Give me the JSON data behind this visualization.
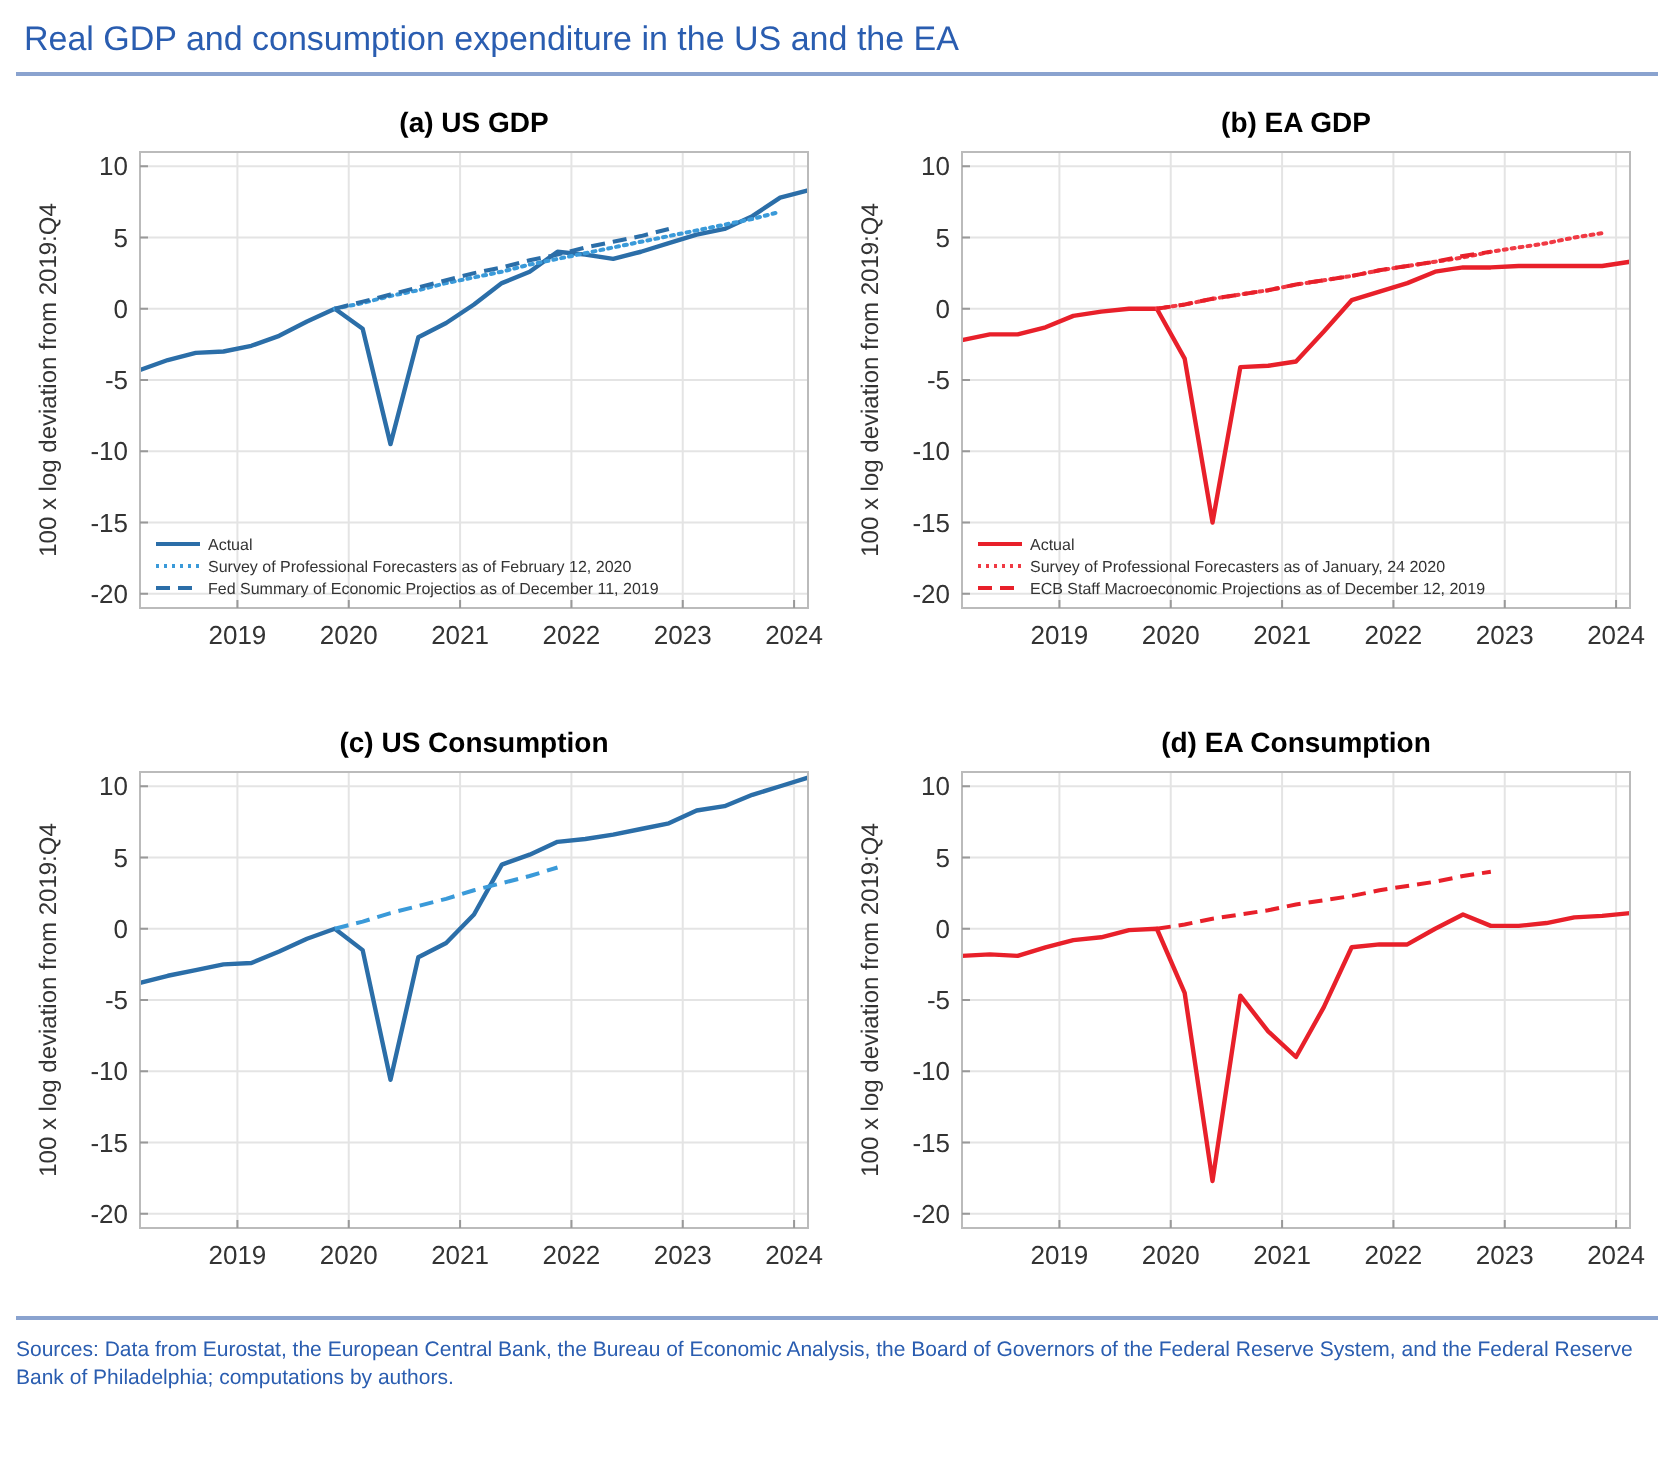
{
  "chart_data": [
    {
      "type": "other",
      "title": "Real GDP and consumption expenditure in the US and the EA",
      "annotations": [
        "Sources: Data from Eurostat, the European Central Bank, the Bureau of Economic Analysis, the Board of Governors of the Federal Reserve System, and the Federal Reserve Bank of Philadelphia; computations by authors."
      ]
    },
    {
      "type": "line",
      "title": "(a) US GDP",
      "ylabel": "100 x log deviation from 2019:Q4",
      "x": [
        2018.125,
        2018.375,
        2018.625,
        2018.875,
        2019.125,
        2019.375,
        2019.625,
        2019.875,
        2020.125,
        2020.375,
        2020.625,
        2020.875,
        2021.125,
        2021.375,
        2021.625,
        2021.875,
        2022.125,
        2022.375,
        2022.625,
        2022.875,
        2023.125,
        2023.375,
        2023.625,
        2023.875,
        2024.125
      ],
      "xlim": [
        2018.125,
        2024.125
      ],
      "xticks": [
        2019,
        2020,
        2021,
        2022,
        2023,
        2024
      ],
      "ylim": [
        -21,
        11
      ],
      "yticks": [
        -20,
        -15,
        -10,
        -5,
        0,
        5,
        10
      ],
      "grid": true,
      "legend": "bottom left",
      "series": [
        {
          "name": "Actual",
          "color": "#2b6ea8",
          "line_style": "solid",
          "values": [
            -4.3,
            -3.6,
            -3.1,
            -3.0,
            -2.6,
            -1.9,
            -0.9,
            0,
            -1.4,
            -9.5,
            -2.0,
            -1.0,
            0.3,
            1.8,
            2.6,
            4.0,
            3.8,
            3.5,
            4.0,
            4.6,
            5.2,
            5.6,
            6.5,
            7.8,
            8.3
          ]
        },
        {
          "name": "Survey of Professional Forecasters as of February 12, 2020",
          "color": "#3a9ad9",
          "line_style": "dotted",
          "x": [
            2019.875,
            2020.125,
            2020.375,
            2020.625,
            2020.875,
            2021.125,
            2021.375,
            2021.625,
            2021.875,
            2022.125,
            2022.375,
            2022.625,
            2022.875,
            2023.125,
            2023.375,
            2023.625,
            2023.875
          ],
          "values": [
            0,
            0.4,
            0.9,
            1.3,
            1.8,
            2.2,
            2.6,
            3.1,
            3.5,
            3.9,
            4.3,
            4.7,
            5.1,
            5.5,
            5.9,
            6.3,
            6.8
          ]
        },
        {
          "name": "Fed Summary of Economic Projectios as of December 11, 2019",
          "color": "#2b6ea8",
          "line_style": "dashed",
          "x": [
            2019.875,
            2020.125,
            2020.375,
            2020.625,
            2020.875,
            2021.125,
            2021.375,
            2021.625,
            2021.875,
            2022.125,
            2022.375,
            2022.625,
            2022.875
          ],
          "values": [
            0,
            0.5,
            1.0,
            1.5,
            2.0,
            2.5,
            2.9,
            3.4,
            3.8,
            4.3,
            4.7,
            5.1,
            5.6
          ]
        }
      ]
    },
    {
      "type": "line",
      "title": "(b) EA GDP",
      "ylabel": "100 x log deviation from 2019:Q4",
      "x": [
        2018.125,
        2018.375,
        2018.625,
        2018.875,
        2019.125,
        2019.375,
        2019.625,
        2019.875,
        2020.125,
        2020.375,
        2020.625,
        2020.875,
        2021.125,
        2021.375,
        2021.625,
        2021.875,
        2022.125,
        2022.375,
        2022.625,
        2022.875,
        2023.125,
        2023.375,
        2023.625,
        2023.875,
        2024.125
      ],
      "xlim": [
        2018.125,
        2024.125
      ],
      "xticks": [
        2019,
        2020,
        2021,
        2022,
        2023,
        2024
      ],
      "ylim": [
        -21,
        11
      ],
      "yticks": [
        -20,
        -15,
        -10,
        -5,
        0,
        5,
        10
      ],
      "grid": true,
      "legend": "bottom left",
      "series": [
        {
          "name": "Actual",
          "color": "#e8202a",
          "line_style": "solid",
          "values": [
            -2.2,
            -1.8,
            -1.8,
            -1.3,
            -0.5,
            -0.2,
            0,
            0,
            -3.5,
            -15.0,
            -4.1,
            -4.0,
            -3.7,
            -1.6,
            0.6,
            1.2,
            1.8,
            2.6,
            2.9,
            2.9,
            3.0,
            3.0,
            3.0,
            3.0,
            3.3
          ]
        },
        {
          "name": "Survey of Professional Forecasters as of January, 24 2020",
          "color": "#f03a44",
          "line_style": "dotted",
          "x": [
            2019.875,
            2020.125,
            2020.375,
            2020.625,
            2020.875,
            2021.125,
            2021.375,
            2021.625,
            2021.875,
            2022.125,
            2022.375,
            2022.625,
            2022.875,
            2023.125,
            2023.375,
            2023.625,
            2023.875
          ],
          "values": [
            0,
            0.3,
            0.7,
            1.0,
            1.3,
            1.7,
            2.0,
            2.3,
            2.7,
            3.0,
            3.3,
            3.6,
            4.0,
            4.3,
            4.6,
            5.0,
            5.3
          ]
        },
        {
          "name": "ECB Staff Macroeconomic Projections as of December 12, 2019",
          "color": "#e8202a",
          "line_style": "dashed",
          "x": [
            2019.875,
            2020.125,
            2020.375,
            2020.625,
            2020.875,
            2021.125,
            2021.375,
            2021.625,
            2021.875,
            2022.125,
            2022.375,
            2022.625,
            2022.875
          ],
          "values": [
            0,
            0.3,
            0.7,
            1.0,
            1.3,
            1.7,
            2.0,
            2.3,
            2.7,
            3.0,
            3.3,
            3.7,
            4.0
          ]
        }
      ]
    },
    {
      "type": "line",
      "title": "(c) US Consumption",
      "ylabel": "100 x log deviation from 2019:Q4",
      "x": [
        2018.125,
        2018.375,
        2018.625,
        2018.875,
        2019.125,
        2019.375,
        2019.625,
        2019.875,
        2020.125,
        2020.375,
        2020.625,
        2020.875,
        2021.125,
        2021.375,
        2021.625,
        2021.875,
        2022.125,
        2022.375,
        2022.625,
        2022.875,
        2023.125,
        2023.375,
        2023.625,
        2023.875,
        2024.125
      ],
      "xlim": [
        2018.125,
        2024.125
      ],
      "xticks": [
        2019,
        2020,
        2021,
        2022,
        2023,
        2024
      ],
      "ylim": [
        -21,
        11
      ],
      "yticks": [
        -20,
        -15,
        -10,
        -5,
        0,
        5,
        10
      ],
      "grid": true,
      "series": [
        {
          "color": "#2b6ea8",
          "line_style": "solid",
          "values": [
            -3.8,
            -3.3,
            -2.9,
            -2.5,
            -2.4,
            -1.6,
            -0.7,
            0,
            -1.5,
            -10.6,
            -2.0,
            -1.0,
            1.0,
            4.5,
            5.2,
            6.1,
            6.3,
            6.6,
            7.0,
            7.4,
            8.3,
            8.6,
            9.4,
            10.0,
            10.6
          ]
        },
        {
          "color": "#3a9ad9",
          "line_style": "dashed",
          "x": [
            2019.875,
            2020.125,
            2020.375,
            2020.625,
            2020.875,
            2021.125,
            2021.375,
            2021.625,
            2021.875
          ],
          "values": [
            0,
            0.5,
            1.1,
            1.6,
            2.1,
            2.7,
            3.2,
            3.7,
            4.3
          ]
        }
      ]
    },
    {
      "type": "line",
      "title": "(d) EA Consumption",
      "ylabel": "100 x log deviation from 2019:Q4",
      "x": [
        2018.125,
        2018.375,
        2018.625,
        2018.875,
        2019.125,
        2019.375,
        2019.625,
        2019.875,
        2020.125,
        2020.375,
        2020.625,
        2020.875,
        2021.125,
        2021.375,
        2021.625,
        2021.875,
        2022.125,
        2022.375,
        2022.625,
        2022.875,
        2023.125,
        2023.375,
        2023.625,
        2023.875,
        2024.125
      ],
      "xlim": [
        2018.125,
        2024.125
      ],
      "xticks": [
        2019,
        2020,
        2021,
        2022,
        2023,
        2024
      ],
      "ylim": [
        -21,
        11
      ],
      "yticks": [
        -20,
        -15,
        -10,
        -5,
        0,
        5,
        10
      ],
      "grid": true,
      "series": [
        {
          "color": "#e8202a",
          "line_style": "solid",
          "values": [
            -1.9,
            -1.8,
            -1.9,
            -1.3,
            -0.8,
            -0.6,
            -0.1,
            0,
            -4.5,
            -17.7,
            -4.7,
            -7.2,
            -9.0,
            -5.5,
            -1.3,
            -1.1,
            -1.1,
            0,
            1.0,
            0.2,
            0.2,
            0.4,
            0.8,
            0.9,
            1.1
          ]
        },
        {
          "color": "#e8202a",
          "line_style": "dashed",
          "x": [
            2019.875,
            2020.125,
            2020.375,
            2020.625,
            2020.875,
            2021.125,
            2021.375,
            2021.625,
            2021.875,
            2022.125,
            2022.375,
            2022.625,
            2022.875
          ],
          "values": [
            0,
            0.3,
            0.7,
            1.0,
            1.3,
            1.7,
            2.0,
            2.3,
            2.7,
            3.0,
            3.3,
            3.7,
            4.0
          ]
        }
      ]
    }
  ]
}
